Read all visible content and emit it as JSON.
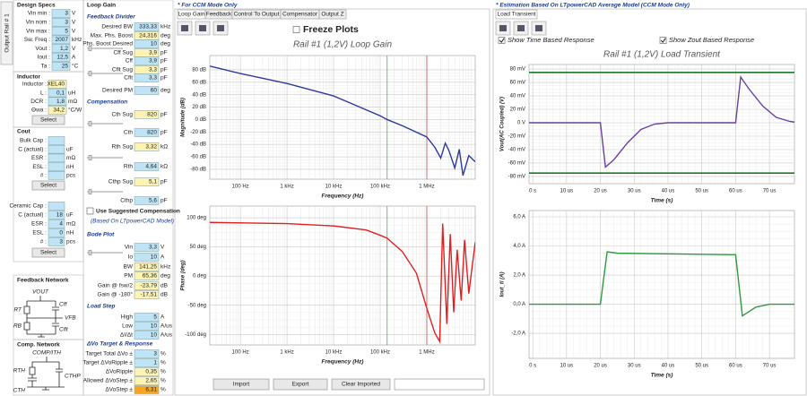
{
  "side_tab": "Output Rail # 1",
  "design_specs": {
    "title": "Design Specs",
    "rows": [
      {
        "label": "Vin min :",
        "value": "3",
        "unit": "V",
        "fill": "#bfe4f6"
      },
      {
        "label": "Vin nom :",
        "value": "3",
        "unit": "V",
        "fill": "#bfe4f6"
      },
      {
        "label": "Vin max :",
        "value": "5",
        "unit": "V",
        "fill": "#bfe4f6"
      },
      {
        "label": "Sw. Freq :",
        "value": "2007",
        "unit": "kHz",
        "fill": "#bfe4f6"
      },
      {
        "label": "Vout :",
        "value": "1,2",
        "unit": "V",
        "fill": "#bfe4f6"
      },
      {
        "label": "Iout :",
        "value": "12,5",
        "unit": "A",
        "fill": "#bfe4f6"
      },
      {
        "label": "Ta :",
        "value": "25",
        "unit": "°C",
        "fill": "#bfe4f6"
      }
    ]
  },
  "inductor": {
    "title": "Inductor",
    "button": "Select",
    "rows": [
      {
        "label": "Inductor :",
        "value": "XEL40",
        "fill": "#fdf3b5"
      },
      {
        "label": "L :",
        "value": "0,1",
        "unit": "uH",
        "fill": "#bfe4f6"
      },
      {
        "label": "DCR :",
        "value": "1,8",
        "unit": "mΩ",
        "fill": "#bfe4f6"
      },
      {
        "label": "Θwa :",
        "value": "34,2",
        "unit": "°C/W",
        "fill": "#fdf3b5"
      }
    ]
  },
  "cout_bulk": {
    "title": "Cout",
    "button": "Select",
    "rows": [
      {
        "label": "Bulk Cap :",
        "fill": "#bfe4f6"
      },
      {
        "label": "C (actual) :",
        "unit": "uF",
        "fill": "#bfe4f6"
      },
      {
        "label": "ESR :",
        "unit": "mΩ",
        "fill": "#bfe4f6"
      },
      {
        "label": "ESL :",
        "unit": "nH",
        "fill": "#bfe4f6"
      },
      {
        "label": "# :",
        "unit": "pcs",
        "fill": "#bfe4f6"
      }
    ]
  },
  "cout_ceramic": {
    "button": "Select",
    "rows": [
      {
        "label": "Ceramic Cap :",
        "fill": "#bfe4f6"
      },
      {
        "label": "C (actual) :",
        "value": "18",
        "unit": "uF",
        "fill": "#bfe4f6"
      },
      {
        "label": "ESR :",
        "value": "4",
        "unit": "mΩ",
        "fill": "#bfe4f6"
      },
      {
        "label": "ESL :",
        "value": "0",
        "unit": "nH",
        "fill": "#bfe4f6"
      },
      {
        "label": "# :",
        "value": "3",
        "unit": "pcs",
        "fill": "#bfe4f6"
      }
    ]
  },
  "feedback_network": {
    "title": "Feedback Network",
    "labels": [
      "VOUT",
      "RT",
      "Cff",
      "VFB",
      "RB",
      "Cflt"
    ]
  },
  "comp_network": {
    "title": "Comp. Network",
    "labels": [
      "COMP/ITH",
      "RTH",
      "CTH",
      "CTHP"
    ]
  },
  "loop_gain": {
    "title": "Loop Gain",
    "checkbox": "Use Suggested Compensation",
    "note": "(Based On LTpowerCAD Model)",
    "sections": [
      {
        "title": "Feedback Divider",
        "rows": [
          {
            "label": "Desired BW",
            "value": "333,33",
            "unit": "kHz",
            "fill": "#bfe4f6"
          },
          {
            "label": "Max. Phs. Boost",
            "value": "24,316",
            "unit": "deg",
            "fill": "#fdf3b5"
          },
          {
            "label": "Phs. Boost Desired",
            "value": "10",
            "unit": "deg",
            "fill": "#bfe4f6"
          },
          {
            "label": "Cff Sug",
            "value": "3,9",
            "unit": "pF",
            "fill": "#fdf3b5"
          },
          {
            "label": "Cff",
            "value": "3,9",
            "unit": "pF",
            "fill": "#bfe4f6"
          },
          {
            "label": "Cflt Sug",
            "value": "3,3",
            "unit": "pF",
            "fill": "#fdf3b5"
          },
          {
            "label": "Cflt",
            "value": "3,3",
            "unit": "pF",
            "fill": "#bfe4f6"
          },
          {
            "label": "Desired PM",
            "value": "60",
            "unit": "deg",
            "fill": "#bfe4f6"
          }
        ]
      },
      {
        "title": "Compensation",
        "rows": [
          {
            "label": "Cth Sug",
            "value": "820",
            "unit": "pF",
            "fill": "#fdf3b5"
          },
          {
            "label": "Cth",
            "value": "820",
            "unit": "pF",
            "fill": "#bfe4f6"
          },
          {
            "label": "Rth Sug",
            "value": "3,32",
            "unit": "kΩ",
            "fill": "#fdf3b5"
          },
          {
            "label": "Rth",
            "value": "4,64",
            "unit": "kΩ",
            "fill": "#bfe4f6"
          },
          {
            "label": "Cthp Sug",
            "value": "5,1",
            "unit": "pF",
            "fill": "#fdf3b5"
          },
          {
            "label": "Cthp",
            "value": "5,6",
            "unit": "pF",
            "fill": "#bfe4f6"
          }
        ]
      },
      {
        "title": "Bode Plot",
        "rows": [
          {
            "label": "Vin",
            "value": "3,3",
            "unit": "V",
            "fill": "#bfe4f6"
          },
          {
            "label": "Io",
            "value": "10",
            "unit": "A",
            "fill": "#bfe4f6"
          },
          {
            "label": "BW",
            "value": "141,25",
            "unit": "kHz",
            "fill": "#fdf3b5"
          },
          {
            "label": "PM",
            "value": "65,36",
            "unit": "deg",
            "fill": "#fdf3b5"
          },
          {
            "label": "Gain @ fsw/2",
            "value": "-23,79",
            "unit": "dB",
            "fill": "#fdf3b5"
          },
          {
            "label": "Gain @ -180°",
            "value": "-17,51",
            "unit": "dB",
            "fill": "#fdf3b5"
          }
        ]
      },
      {
        "title": "Load Step",
        "rows": [
          {
            "label": "High",
            "value": "5",
            "unit": "A",
            "fill": "#bfe4f6"
          },
          {
            "label": "Low",
            "value": "10",
            "unit": "A/us",
            "fill": "#bfe4f6"
          },
          {
            "label": "ΔI/Δt",
            "value": "10",
            "unit": "A/us",
            "fill": "#bfe4f6"
          }
        ]
      },
      {
        "title": "ΔVo Target & Response",
        "rows": [
          {
            "label": "Target Total ΔVo ±",
            "value": "3",
            "unit": "%",
            "fill": "#bfe4f6"
          },
          {
            "label": "Target ΔVoRipple ±",
            "value": "1",
            "unit": "%",
            "fill": "#bfe4f6"
          },
          {
            "label": "ΔVoRipple",
            "value": "0,35",
            "unit": "%",
            "fill": "#fdf3b5"
          },
          {
            "label": "Allowed ΔVoStep ±",
            "value": "2,65",
            "unit": "%",
            "fill": "#fdf3b5"
          },
          {
            "label": "ΔVoStep ±",
            "value": "6,31",
            "unit": "%",
            "fill": "#f5a623"
          }
        ]
      }
    ]
  },
  "bode_panel": {
    "header": "* For CCM Mode Only",
    "tabs": [
      "Loop Gain",
      "Feedback",
      "Control To Output",
      "Compensator",
      "Output Z"
    ],
    "freeze": {
      "label": "Freeze Plots",
      "checked": false
    },
    "buttons": [
      "Import",
      "Export",
      "Clear Imported"
    ],
    "charts": [
      {
        "type": "line",
        "title": "Rail #1 (1,2V) Loop Gain",
        "xlabel": "Frequency (Hz)",
        "ylabel": "Magnitude (dB)",
        "xscale": "log",
        "xlim": [
          22,
          11000000
        ],
        "ylim": [
          -96,
          103
        ],
        "xticks": [
          {
            "value": 100,
            "label": "100 Hz"
          },
          {
            "value": 1000,
            "label": "1 kHz"
          },
          {
            "value": 10000,
            "label": "10 kHz"
          },
          {
            "value": 100000,
            "label": "100 kHz"
          },
          {
            "value": 1000000,
            "label": "1 MHz"
          }
        ],
        "yticks": [
          {
            "value": 80,
            "label": "80 dB"
          },
          {
            "value": 60,
            "label": "60 dB"
          },
          {
            "value": 40,
            "label": "40 dB"
          },
          {
            "value": 20,
            "label": "20 dB"
          },
          {
            "value": 0,
            "label": "0 dB"
          },
          {
            "value": -20,
            "label": "-20 dB"
          },
          {
            "value": -40,
            "label": "-40 dB"
          },
          {
            "value": -60,
            "label": "-60 dB"
          },
          {
            "value": -80,
            "label": "-80 dB"
          }
        ],
        "markers": [
          {
            "x": 141250,
            "color": "#5aa65a"
          },
          {
            "x": 1003500,
            "color": "#d05050"
          }
        ],
        "series": [
          {
            "color": "#2b3a9c",
            "x": [
              22,
              100,
              1000,
              10000,
              100000,
              141250,
              300000,
              1000000,
              1500000,
              2000000,
              2500000,
              3000000,
              4000000,
              5000000,
              6000000,
              8000000,
              11000000
            ],
            "values": [
              86,
              74,
              58,
              38,
              6,
              0,
              -10,
              -28,
              -45,
              -62,
              -38,
              -50,
              -78,
              -48,
              -90,
              -58,
              -68
            ]
          }
        ]
      },
      {
        "type": "line",
        "xlabel": "Frequency (Hz)",
        "ylabel": "Phase (deg)",
        "xscale": "log",
        "xlim": [
          22,
          11000000
        ],
        "ylim": [
          -118,
          120
        ],
        "xticks": [
          {
            "value": 100,
            "label": "100 Hz"
          },
          {
            "value": 1000,
            "label": "1 kHz"
          },
          {
            "value": 10000,
            "label": "10 kHz"
          },
          {
            "value": 100000,
            "label": "100 kHz"
          },
          {
            "value": 1000000,
            "label": "1 MHz"
          }
        ],
        "yticks": [
          {
            "value": 100,
            "label": "100 deg"
          },
          {
            "value": 50,
            "label": "50 deg"
          },
          {
            "value": 0,
            "label": "0 deg"
          },
          {
            "value": -50,
            "label": "-50 deg"
          },
          {
            "value": -100,
            "label": "-100 deg"
          }
        ],
        "markers": [
          {
            "x": 141250,
            "color": "#5aa65a"
          },
          {
            "x": 1003500,
            "color": "#d05050"
          }
        ],
        "series": [
          {
            "color": "#e02020",
            "x": [
              22,
              1000,
              10000,
              50000,
              100000,
              141250,
              300000,
              600000,
              1000000,
              1500000,
              1900000,
              2200000,
              2700000,
              3200000,
              3800000,
              4500000,
              5500000,
              6500000,
              8000000,
              11000000
            ],
            "values": [
              92,
              90,
              86,
              79,
              70,
              65,
              42,
              5,
              -55,
              -98,
              -112,
              90,
              -82,
              72,
              -62,
              45,
              -42,
              62,
              -30,
              58
            ]
          }
        ]
      }
    ]
  },
  "transient_panel": {
    "header": "* Estimation Based On LTpowerCAD Average Model (CCM Mode Only)",
    "tab": "Load Transient",
    "checkboxes": [
      {
        "label": "Show Time Based Response",
        "checked": true
      },
      {
        "label": "Show Zout Based Response",
        "checked": true
      }
    ],
    "charts": [
      {
        "type": "line",
        "title": "Rail #1 (1,2V) Load Transient",
        "xlabel": "Time (s)",
        "ylabel": "Vout(AC Coupled) (V)",
        "xlim": [
          -1.1e-06,
          7.74e-05
        ],
        "ylim": [
          -90.7,
          86.7
        ],
        "xticks": [
          {
            "value": 0,
            "label": "0 s"
          },
          {
            "value": 1e-05,
            "label": "10 us"
          },
          {
            "value": 2e-05,
            "label": "20 us"
          },
          {
            "value": 3e-05,
            "label": "30 us"
          },
          {
            "value": 4e-05,
            "label": "40 us"
          },
          {
            "value": 5e-05,
            "label": "50 us"
          },
          {
            "value": 6e-05,
            "label": "60 us"
          },
          {
            "value": 7e-05,
            "label": "70 us"
          }
        ],
        "yticks": [
          {
            "value": 80,
            "label": "80 mV"
          },
          {
            "value": 60,
            "label": "60 mV"
          },
          {
            "value": 40,
            "label": "40 mV"
          },
          {
            "value": 20,
            "label": "20 mV"
          },
          {
            "value": 0,
            "label": "0 V"
          },
          {
            "value": -20,
            "label": "-20 mV"
          },
          {
            "value": -40,
            "label": "-40 mV"
          },
          {
            "value": -60,
            "label": "-60 mV"
          },
          {
            "value": -80,
            "label": "-80 mV"
          }
        ],
        "limits": [
          75,
          -75
        ],
        "limit_color": "#1a7a2a",
        "series": [
          {
            "color": "#6a3fa0",
            "x": [
              -1.1e-06,
              2e-05,
              2.15e-05,
              2.4e-05,
              2.8e-05,
              3.2e-05,
              3.6e-05,
              4e-05,
              6e-05,
              6.15e-05,
              6.4e-05,
              6.8e-05,
              7.2e-05,
              7.6e-05,
              7.74e-05
            ],
            "values": [
              0,
              0,
              -66,
              -55,
              -30,
              -10,
              -2,
              0,
              0,
              68,
              50,
              25,
              8,
              2,
              1
            ]
          }
        ]
      },
      {
        "type": "line",
        "xlabel": "Time (s)",
        "ylabel": "Iout_tl (A)",
        "xlim": [
          -1.1e-06,
          7.74e-05
        ],
        "ylim": [
          -3.72,
          6.43
        ],
        "xticks": [
          {
            "value": 0,
            "label": "0 s"
          },
          {
            "value": 1e-05,
            "label": "10 us"
          },
          {
            "value": 2e-05,
            "label": "20 us"
          },
          {
            "value": 3e-05,
            "label": "30 us"
          },
          {
            "value": 4e-05,
            "label": "40 us"
          },
          {
            "value": 5e-05,
            "label": "50 us"
          },
          {
            "value": 6e-05,
            "label": "60 us"
          },
          {
            "value": 7e-05,
            "label": "70 us"
          }
        ],
        "yticks": [
          {
            "value": 6,
            "label": "6,0 A"
          },
          {
            "value": 4,
            "label": "4,0 A"
          },
          {
            "value": 2,
            "label": "2,0 A"
          },
          {
            "value": 0,
            "label": "0,0 A"
          },
          {
            "value": -2,
            "label": "-2,0 A"
          }
        ],
        "series": [
          {
            "color": "#2e9a3e",
            "x": [
              -1.1e-06,
              2e-05,
              2.2e-05,
              2.5e-05,
              6e-05,
              6.2e-05,
              6.6e-05,
              7e-05,
              7.74e-05
            ],
            "values": [
              0,
              0,
              3.6,
              3.5,
              3.4,
              -0.8,
              -0.2,
              0,
              0
            ]
          }
        ]
      }
    ]
  }
}
